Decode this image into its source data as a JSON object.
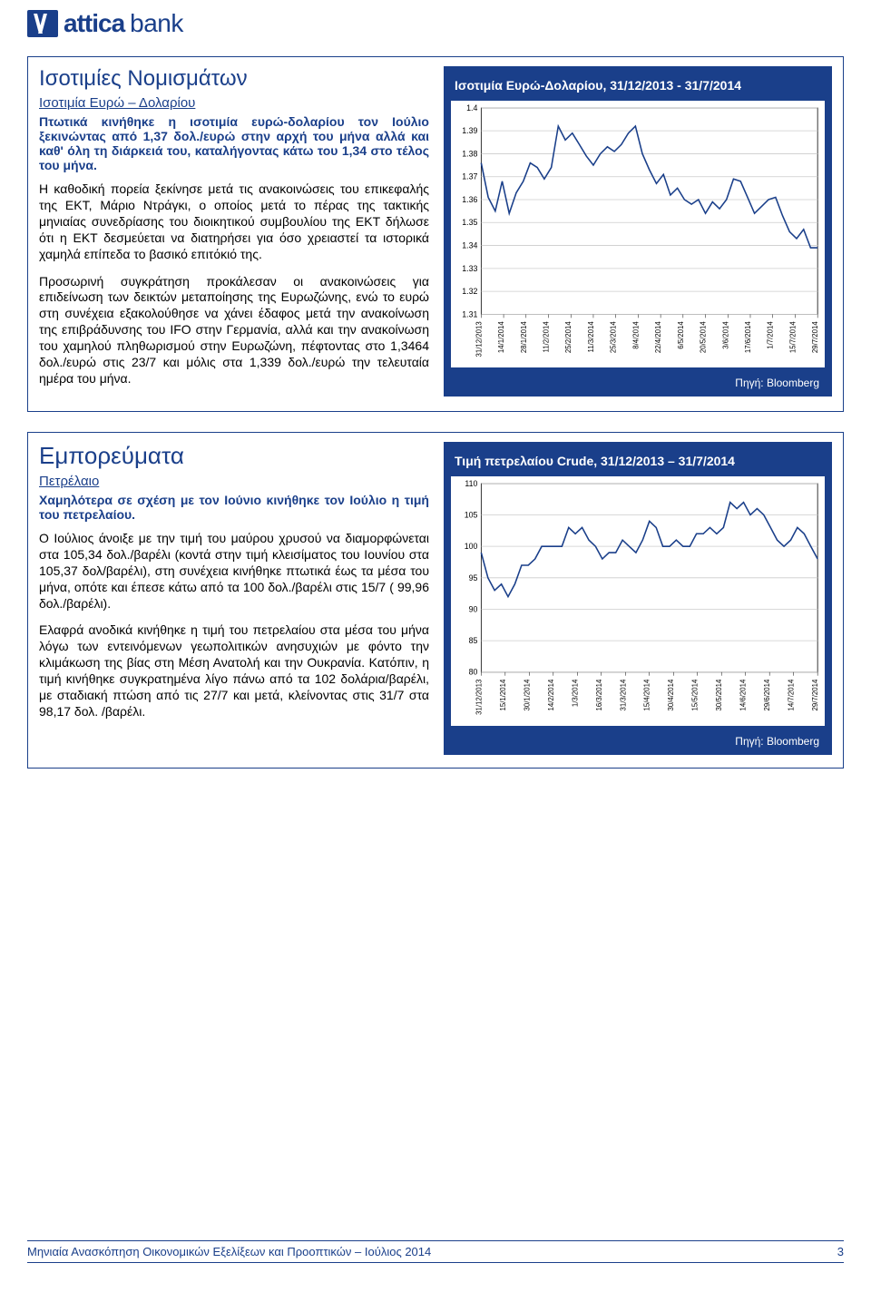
{
  "logo": {
    "strong": "attica",
    "light": " bank"
  },
  "section1": {
    "title": "Ισοτιμίες Νομισμάτων",
    "subtitle": "Ισοτιμία Ευρώ – Δολαρίου",
    "lead": "Πτωτικά κινήθηκε η ισοτιμία ευρώ-δολαρίου τον Ιούλιο ξεκινώντας από 1,37 δολ./ευρώ στην αρχή του μήνα αλλά και καθ' όλη τη διάρκειά του, καταλήγοντας κάτω του 1,34 στο τέλος του μήνα.",
    "p1": "Η καθοδική πορεία ξεκίνησε μετά τις ανακοινώσεις του επικεφαλής της ΕΚΤ, Μάριο Ντράγκι, ο οποίος μετά το πέρας της τακτικής μηνιαίας συνεδρίασης του διοικητικού συμβουλίου της ΕΚΤ δήλωσε ότι η ΕΚΤ δεσμεύεται να διατηρήσει για όσο χρειαστεί τα ιστορικά χαμηλά επίπεδα το βασικό επιτόκιό της.",
    "p2": "Προσωρινή συγκράτηση προκάλεσαν οι ανακοινώσεις για επιδείνωση των δεικτών μεταποίησης της Ευρωζώνης, ενώ το ευρώ στη συνέχεια εξακολούθησε να χάνει έδαφος μετά την ανακοίνωση της επιβράδυνσης του IFO στην Γερμανία, αλλά και την ανακοίνωση του χαμηλού πληθωρισμού στην Ευρωζώνη, πέφτοντας στο 1,3464 δολ./ευρώ στις 23/7 και μόλις στα 1,339 δολ./ευρώ την τελευταία ημέρα του μήνα.",
    "chart": {
      "title": "Ισοτιμία Ευρώ-Δολαρίου, 31/12/2013 - 31/7/2014",
      "source": "Πηγή: Bloomberg",
      "type": "line",
      "ylim": [
        1.31,
        1.4
      ],
      "ytick_step": 0.01,
      "yticks": [
        "1.31",
        "1.32",
        "1.33",
        "1.34",
        "1.35",
        "1.36",
        "1.37",
        "1.38",
        "1.39",
        "1.4"
      ],
      "xlabels": [
        "31/12/2013",
        "14/1/2014",
        "28/1/2014",
        "11/2/2014",
        "25/2/2014",
        "11/3/2014",
        "25/3/2014",
        "8/4/2014",
        "22/4/2014",
        "6/5/2014",
        "20/5/2014",
        "3/6/2014",
        "17/6/2014",
        "1/7/2014",
        "15/7/2014",
        "29/7/2014"
      ],
      "line_color": "#1a3f8a",
      "background_color": "#ffffff",
      "grid_color": "#cccccc",
      "values": [
        1.376,
        1.361,
        1.355,
        1.368,
        1.354,
        1.363,
        1.368,
        1.376,
        1.374,
        1.369,
        1.374,
        1.392,
        1.386,
        1.389,
        1.384,
        1.379,
        1.375,
        1.38,
        1.383,
        1.381,
        1.384,
        1.389,
        1.392,
        1.38,
        1.373,
        1.367,
        1.371,
        1.362,
        1.365,
        1.36,
        1.358,
        1.36,
        1.354,
        1.359,
        1.356,
        1.36,
        1.369,
        1.368,
        1.361,
        1.354,
        1.357,
        1.36,
        1.361,
        1.353,
        1.346,
        1.343,
        1.347,
        1.339,
        1.339
      ]
    }
  },
  "section2": {
    "title": "Εμπορεύματα",
    "subtitle": "Πετρέλαιο",
    "lead": "Χαμηλότερα σε σχέση με τον Ιούνιο κινήθηκε τον Ιούλιο η τιμή του πετρελαίου.",
    "p1": "Ο Ιούλιος άνοιξε με την τιμή του μαύρου χρυσού να διαμορφώνεται στα 105,34 δολ./βαρέλι (κοντά στην τιμή κλεισίματος του Ιουνίου στα 105,37 δολ/βαρέλι), στη συνέχεια κινήθηκε πτωτικά έως τα μέσα του μήνα, οπότε και έπεσε κάτω από τα 100 δολ./βαρέλι στις 15/7 ( 99,96 δολ./βαρέλι).",
    "p2": "Ελαφρά ανοδικά κινήθηκε η τιμή του πετρελαίου στα μέσα του μήνα λόγω των εντεινόμενων γεωπολιτικών ανησυχιών με φόντο την κλιμάκωση της βίας στη Μέση Ανατολή και την Ουκρανία. Κατόπιν, η τιμή κινήθηκε συγκρατημένα λίγο πάνω από τα 102 δολάρια/βαρέλι, με σταδιακή πτώση από τις 27/7 και μετά, κλείνοντας στις 31/7 στα 98,17 δολ. /βαρέλι.",
    "chart": {
      "title": "Τιμή πετρελαίου Crude, 31/12/2013 – 31/7/2014",
      "source": "Πηγή: Bloomberg",
      "type": "line",
      "ylim": [
        80,
        110
      ],
      "ytick_step": 5,
      "yticks": [
        "80",
        "85",
        "90",
        "95",
        "100",
        "105",
        "110"
      ],
      "xlabels": [
        "31/12/2013",
        "15/1/2014",
        "30/1/2014",
        "14/2/2014",
        "1/3/2014",
        "16/3/2014",
        "31/3/2014",
        "15/4/2014",
        "30/4/2014",
        "15/5/2014",
        "30/5/2014",
        "14/6/2014",
        "29/6/2014",
        "14/7/2014",
        "29/7/2014"
      ],
      "line_color": "#1a3f8a",
      "background_color": "#ffffff",
      "grid_color": "#cccccc",
      "values": [
        99,
        95,
        93,
        94,
        92,
        94,
        97,
        97,
        98,
        100,
        100,
        100,
        100,
        103,
        102,
        103,
        101,
        100,
        98,
        99,
        99,
        101,
        100,
        99,
        101,
        104,
        103,
        100,
        100,
        101,
        100,
        100,
        102,
        102,
        103,
        102,
        103,
        107,
        106,
        107,
        105,
        106,
        105,
        103,
        101,
        100,
        101,
        103,
        102,
        100,
        98
      ]
    }
  },
  "footer": {
    "text": "Μηνιαία Ανασκόπηση Οικονομικών Εξελίξεων και Προοπτικών – Ιούλιος 2014",
    "page": "3"
  }
}
